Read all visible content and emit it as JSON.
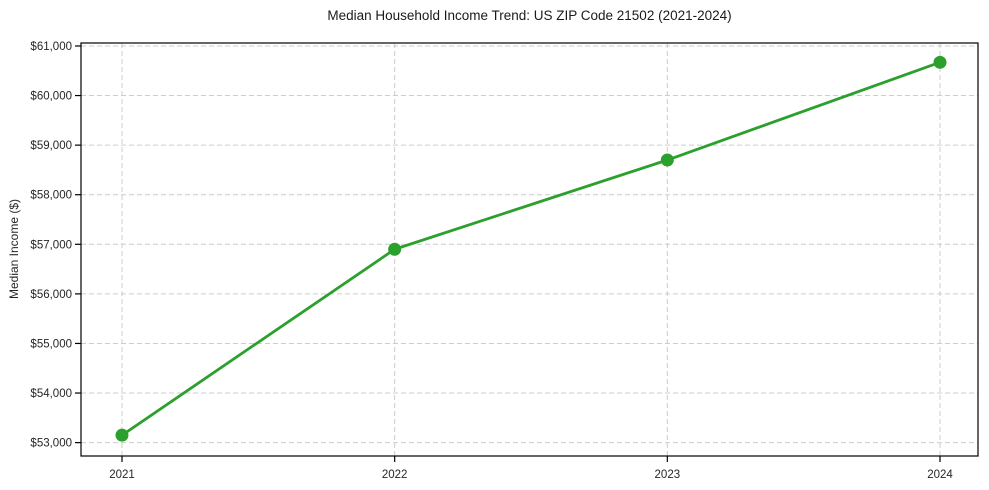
{
  "chart_data": {
    "type": "line",
    "title": "Median Household Income Trend: US ZIP Code 21502 (2021-2024)",
    "xlabel": "",
    "ylabel": "Median Income ($)",
    "categories": [
      "2021",
      "2022",
      "2023",
      "2024"
    ],
    "series": [
      {
        "name": "Median household income",
        "color": "#2ca02c",
        "marker": "circle",
        "values": [
          53150,
          56900,
          58700,
          60670
        ]
      }
    ],
    "yticks": [
      53000,
      54000,
      55000,
      56000,
      57000,
      58000,
      59000,
      60000,
      61000
    ],
    "ytick_labels": [
      "$53,000",
      "$54,000",
      "$55,000",
      "$56,000",
      "$57,000",
      "$58,000",
      "$59,000",
      "$60,000",
      "$61,000"
    ],
    "ylim": [
      52730,
      61060
    ],
    "grid": {
      "horizontal": true,
      "vertical": true,
      "style": "dashed",
      "color": "#cccccc"
    },
    "legend": "none"
  },
  "colors": {
    "background": "#ffffff",
    "spine": "#000000",
    "text": "#262626",
    "line": "#2ca02c"
  }
}
